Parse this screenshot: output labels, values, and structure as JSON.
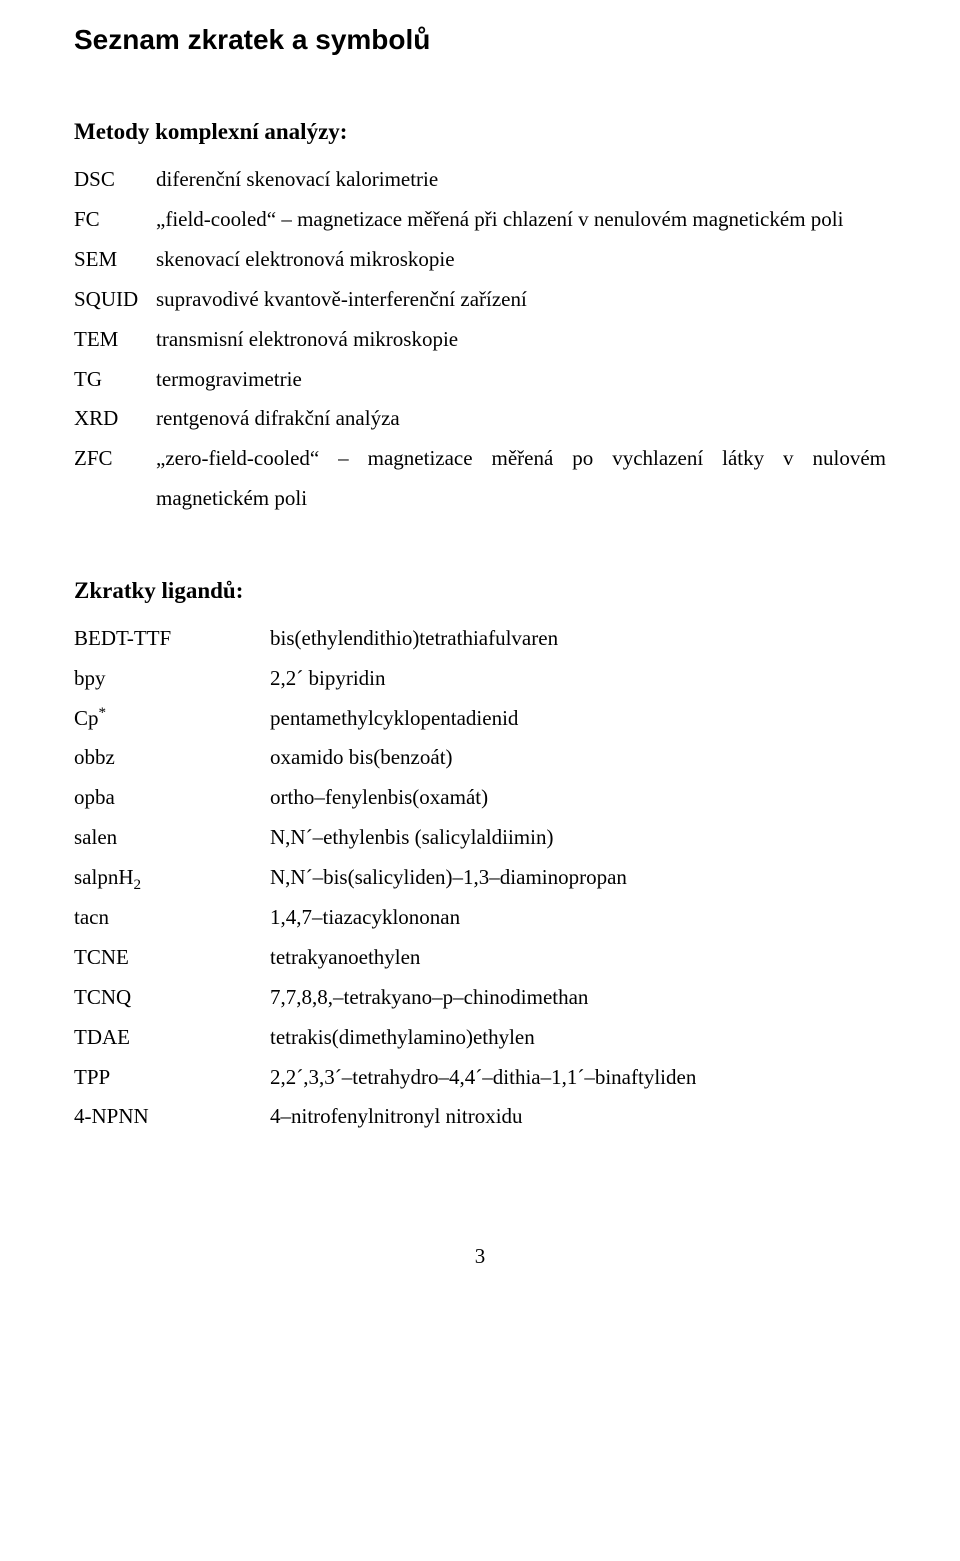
{
  "title": "Seznam zkratek a symbolů",
  "section1": {
    "heading": "Metody komplexní analýzy:",
    "rows": [
      {
        "abbr": "DSC",
        "desc": "diferenční skenovací kalorimetrie"
      },
      {
        "abbr": "FC",
        "desc": "„field-cooled“ – magnetizace měřená při chlazení v nenulovém magnetickém poli"
      },
      {
        "abbr": "SEM",
        "desc": "skenovací elektronová mikroskopie"
      },
      {
        "abbr": "SQUID",
        "desc": "supravodivé kvantově-interferenční zařízení"
      },
      {
        "abbr": "TEM",
        "desc": "transmisní elektronová mikroskopie"
      },
      {
        "abbr": "TG",
        "desc": "termogravimetrie"
      },
      {
        "abbr": "XRD",
        "desc": "rentgenová difrakční analýza"
      },
      {
        "abbr": "ZFC",
        "desc": "„zero-field-cooled“ – magnetizace měřená po vychlazení látky v nulovém magnetickém poli"
      }
    ]
  },
  "section2": {
    "heading": "Zkratky ligandů:",
    "rows": [
      {
        "abbr_html": "BEDT-TTF",
        "desc": "bis(ethylendithio)tetrathiafulvaren"
      },
      {
        "abbr_html": "bpy",
        "desc": "2,2´ bipyridin"
      },
      {
        "abbr_html": "Cp<span class=\"sup\">*</span>",
        "desc": "pentamethylcyklopentadienid"
      },
      {
        "abbr_html": "obbz",
        "desc": "oxamido bis(benzoát)"
      },
      {
        "abbr_html": "opba",
        "desc": "ortho–fenylenbis(oxamát)"
      },
      {
        "abbr_html": "salen",
        "desc": "N,N´–ethylenbis (salicylaldiimin)"
      },
      {
        "abbr_html": "salpnH<span class=\"sub\">2</span>",
        "desc": "N,N´–bis(salicyliden)–1,3–diaminopropan"
      },
      {
        "abbr_html": "tacn",
        "desc": "1,4,7–tiazacyklononan"
      },
      {
        "abbr_html": "TCNE",
        "desc": "tetrakyanoethylen"
      },
      {
        "abbr_html": "TCNQ",
        "desc": "7,7,8,8,–tetrakyano–p–chinodimethan"
      },
      {
        "abbr_html": "TDAE",
        "desc": "tetrakis(dimethylamino)ethylen"
      },
      {
        "abbr_html": "TPP",
        "desc": "2,2´,3,3´–tetrahydro–4,4´–dithia–1,1´–binaftyliden"
      },
      {
        "abbr_html": "4-NPNN",
        "desc": "4–nitrofenylnitronyl nitroxidu"
      }
    ]
  },
  "page_number": "3"
}
